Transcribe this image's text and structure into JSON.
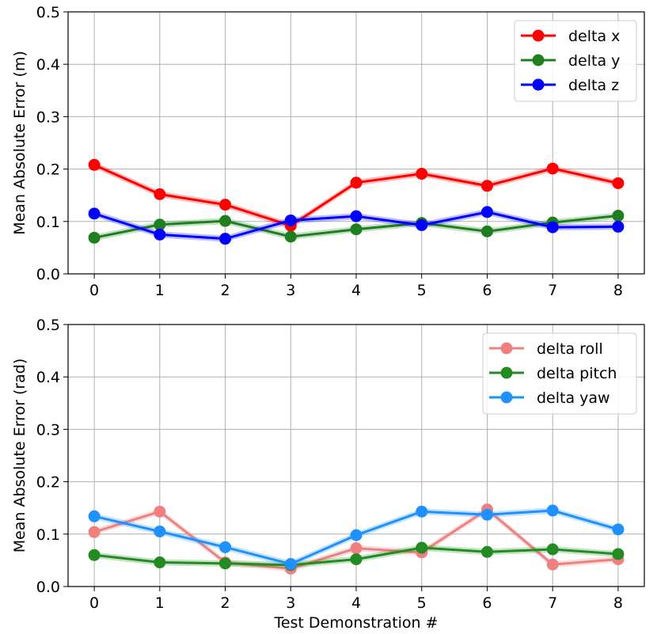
{
  "chart_data": [
    {
      "type": "line",
      "title": "",
      "xlabel": "",
      "ylabel": "Mean Absolute Error (m)",
      "x": [
        0,
        1,
        2,
        3,
        4,
        5,
        6,
        7,
        8
      ],
      "xticks": [
        "0",
        "1",
        "2",
        "3",
        "4",
        "5",
        "6",
        "7",
        "8"
      ],
      "ylim": [
        0.0,
        0.5
      ],
      "yticks": [
        "0.0",
        "0.1",
        "0.2",
        "0.3",
        "0.4",
        "0.5"
      ],
      "grid": true,
      "legend_position": "top-right",
      "series": [
        {
          "name": "delta x",
          "color": "#ff0000",
          "values": [
            0.208,
            0.152,
            0.132,
            0.092,
            0.174,
            0.191,
            0.168,
            0.201,
            0.173
          ]
        },
        {
          "name": "delta y",
          "color": "#1f7f1f",
          "values": [
            0.069,
            0.094,
            0.101,
            0.071,
            0.085,
            0.097,
            0.081,
            0.098,
            0.111
          ]
        },
        {
          "name": "delta z",
          "color": "#0000ff",
          "values": [
            0.115,
            0.075,
            0.067,
            0.102,
            0.11,
            0.093,
            0.118,
            0.089,
            0.09
          ]
        }
      ]
    },
    {
      "type": "line",
      "title": "",
      "xlabel": "Test Demonstration #",
      "ylabel": "Mean Absolute Error (rad)",
      "x": [
        0,
        1,
        2,
        3,
        4,
        5,
        6,
        7,
        8
      ],
      "xticks": [
        "0",
        "1",
        "2",
        "3",
        "4",
        "5",
        "6",
        "7",
        "8"
      ],
      "ylim": [
        0.0,
        0.5
      ],
      "yticks": [
        "0.0",
        "0.1",
        "0.2",
        "0.3",
        "0.4",
        "0.5"
      ],
      "grid": true,
      "legend_position": "top-right",
      "series": [
        {
          "name": "delta roll",
          "color": "#f08080",
          "values": [
            0.104,
            0.143,
            0.046,
            0.034,
            0.073,
            0.065,
            0.147,
            0.042,
            0.052
          ]
        },
        {
          "name": "delta pitch",
          "color": "#228b22",
          "values": [
            0.06,
            0.046,
            0.044,
            0.041,
            0.052,
            0.074,
            0.066,
            0.071,
            0.062
          ]
        },
        {
          "name": "delta yaw",
          "color": "#1e90ff",
          "values": [
            0.134,
            0.105,
            0.075,
            0.043,
            0.098,
            0.143,
            0.137,
            0.145,
            0.109
          ]
        }
      ]
    }
  ]
}
